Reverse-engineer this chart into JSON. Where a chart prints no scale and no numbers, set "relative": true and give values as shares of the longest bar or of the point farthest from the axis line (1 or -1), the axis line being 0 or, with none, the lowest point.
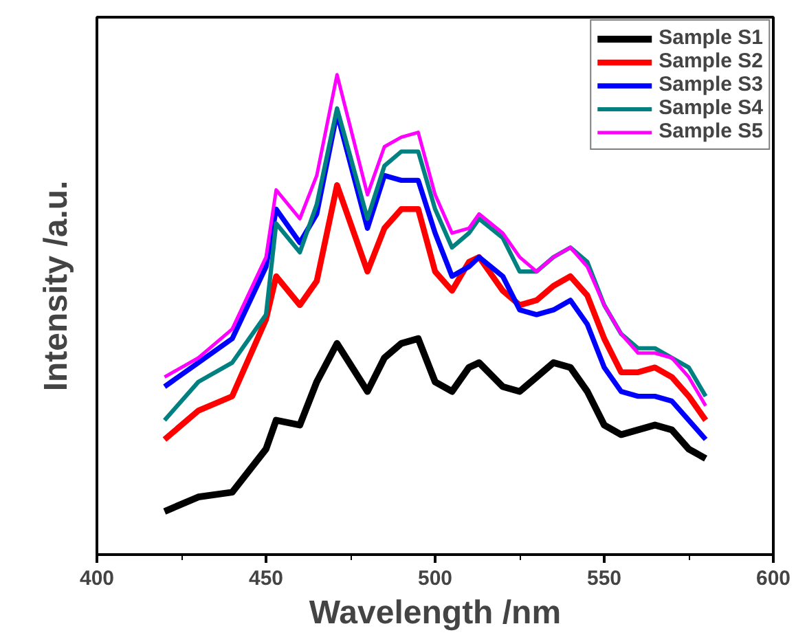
{
  "chart_data": {
    "type": "line",
    "relative": true,
    "xlabel": "Wavelength /nm",
    "ylabel": "Intensity /a.u.",
    "xlim": [
      400,
      600
    ],
    "xticks": [
      400,
      450,
      500,
      550,
      600
    ],
    "legend": "top right",
    "grid": false,
    "x": [
      420,
      430,
      440,
      450,
      453,
      460,
      465,
      471,
      480,
      485,
      490,
      495,
      500,
      505,
      510,
      513,
      520,
      525,
      530,
      535,
      540,
      545,
      550,
      555,
      560,
      565,
      570,
      575,
      580
    ],
    "series": [
      {
        "name": "Sample S1",
        "color": "#000000",
        "values": [
          0.09,
          0.12,
          0.13,
          0.22,
          0.28,
          0.27,
          0.36,
          0.44,
          0.34,
          0.41,
          0.44,
          0.45,
          0.36,
          0.34,
          0.39,
          0.4,
          0.35,
          0.34,
          0.37,
          0.4,
          0.39,
          0.34,
          0.27,
          0.25,
          0.26,
          0.27,
          0.26,
          0.22,
          0.2
        ]
      },
      {
        "name": "Sample S2",
        "color": "#ff0000",
        "values": [
          0.24,
          0.3,
          0.33,
          0.49,
          0.58,
          0.52,
          0.57,
          0.77,
          0.59,
          0.68,
          0.72,
          0.72,
          0.59,
          0.55,
          0.61,
          0.62,
          0.55,
          0.52,
          0.53,
          0.56,
          0.58,
          0.54,
          0.45,
          0.38,
          0.38,
          0.39,
          0.37,
          0.33,
          0.28
        ]
      },
      {
        "name": "Sample S3",
        "color": "#0000ff",
        "values": [
          0.35,
          0.4,
          0.45,
          0.6,
          0.72,
          0.65,
          0.71,
          0.92,
          0.68,
          0.79,
          0.78,
          0.78,
          0.67,
          0.58,
          0.6,
          0.62,
          0.58,
          0.51,
          0.5,
          0.51,
          0.53,
          0.48,
          0.39,
          0.34,
          0.33,
          0.33,
          0.32,
          0.28,
          0.24
        ]
      },
      {
        "name": "Sample S4",
        "color": "#008080",
        "values": [
          0.28,
          0.36,
          0.4,
          0.5,
          0.69,
          0.63,
          0.73,
          0.93,
          0.7,
          0.81,
          0.84,
          0.84,
          0.72,
          0.64,
          0.67,
          0.7,
          0.66,
          0.59,
          0.59,
          0.62,
          0.64,
          0.61,
          0.52,
          0.46,
          0.43,
          0.43,
          0.41,
          0.39,
          0.33
        ]
      },
      {
        "name": "Sample S5",
        "color": "#ff00ff",
        "values": [
          0.37,
          0.41,
          0.47,
          0.62,
          0.76,
          0.7,
          0.79,
          1.0,
          0.75,
          0.85,
          0.87,
          0.88,
          0.75,
          0.67,
          0.68,
          0.71,
          0.67,
          0.62,
          0.59,
          0.62,
          0.64,
          0.6,
          0.52,
          0.46,
          0.42,
          0.42,
          0.41,
          0.37,
          0.31
        ]
      }
    ]
  }
}
